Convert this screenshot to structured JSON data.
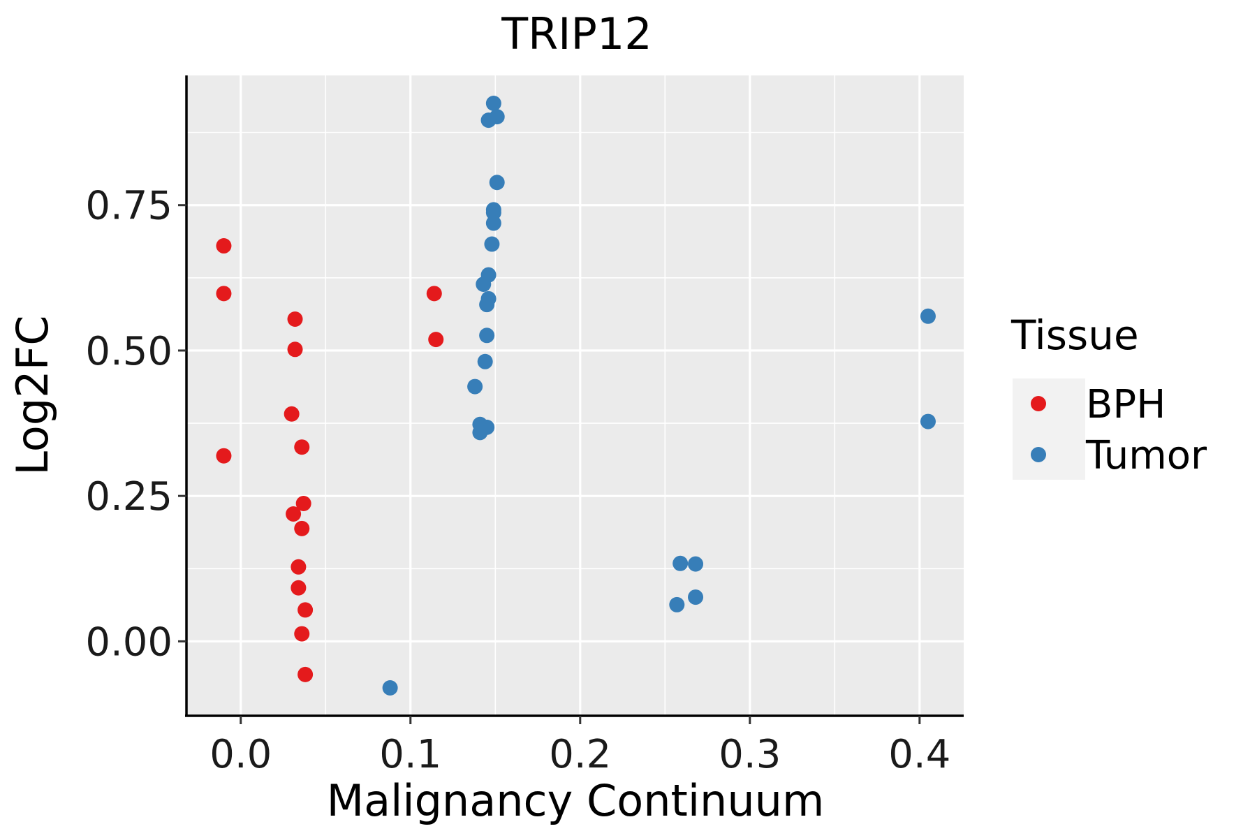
{
  "chart_data": {
    "type": "scatter",
    "title": "TRIP12",
    "xlabel": "Malignancy Continuum",
    "ylabel": "Log2FC",
    "xlim": [
      -0.032,
      0.426
    ],
    "ylim": [
      -0.128,
      0.973
    ],
    "x_ticks": [
      0.0,
      0.1,
      0.2,
      0.3,
      0.4
    ],
    "x_tick_labels": [
      "0.0",
      "0.1",
      "0.2",
      "0.3",
      "0.4"
    ],
    "y_ticks": [
      0.0,
      0.25,
      0.5,
      0.75
    ],
    "y_tick_labels": [
      "0.00",
      "0.25",
      "0.50",
      "0.75"
    ],
    "x_minor": [
      0.05,
      0.15,
      0.25,
      0.35
    ],
    "y_minor": [
      0.125,
      0.375,
      0.625,
      0.875
    ],
    "grid": true,
    "legend": {
      "title": "Tissue",
      "position": "right"
    },
    "series": [
      {
        "name": "BPH",
        "color": "#E41A1C",
        "points": [
          [
            -0.01,
            0.68
          ],
          [
            -0.01,
            0.598
          ],
          [
            -0.01,
            0.319
          ],
          [
            0.032,
            0.554
          ],
          [
            0.032,
            0.502
          ],
          [
            0.03,
            0.391
          ],
          [
            0.036,
            0.334
          ],
          [
            0.037,
            0.237
          ],
          [
            0.031,
            0.219
          ],
          [
            0.036,
            0.194
          ],
          [
            0.034,
            0.128
          ],
          [
            0.034,
            0.092
          ],
          [
            0.038,
            0.054
          ],
          [
            0.036,
            0.013
          ],
          [
            0.038,
            -0.057
          ],
          [
            0.114,
            0.598
          ],
          [
            0.115,
            0.519
          ]
        ]
      },
      {
        "name": "Tumor",
        "color": "#377EB8",
        "points": [
          [
            0.149,
            0.925
          ],
          [
            0.151,
            0.902
          ],
          [
            0.146,
            0.896
          ],
          [
            0.151,
            0.789
          ],
          [
            0.149,
            0.742
          ],
          [
            0.149,
            0.737
          ],
          [
            0.149,
            0.719
          ],
          [
            0.148,
            0.683
          ],
          [
            0.146,
            0.63
          ],
          [
            0.143,
            0.614
          ],
          [
            0.146,
            0.589
          ],
          [
            0.145,
            0.579
          ],
          [
            0.145,
            0.526
          ],
          [
            0.144,
            0.481
          ],
          [
            0.138,
            0.438
          ],
          [
            0.141,
            0.373
          ],
          [
            0.145,
            0.368
          ],
          [
            0.141,
            0.359
          ],
          [
            0.088,
            -0.08
          ],
          [
            0.259,
            0.134
          ],
          [
            0.268,
            0.133
          ],
          [
            0.268,
            0.076
          ],
          [
            0.257,
            0.063
          ],
          [
            0.405,
            0.559
          ],
          [
            0.405,
            0.378
          ]
        ]
      }
    ]
  }
}
